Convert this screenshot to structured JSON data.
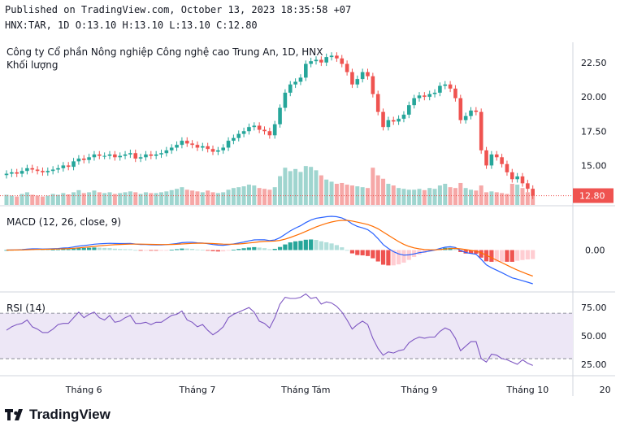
{
  "header": {
    "published": "Published on TradingView.com, October 13, 2023 18:35:58 +07",
    "ohlc": "HNX:TAR, 1D O:13.10 H:13.10 L:13.10 C:12.80"
  },
  "footer": {
    "brand": "TradingView"
  },
  "colors": {
    "up": "#26a69a",
    "down": "#ef5350",
    "vol_up": "#9fd5cf",
    "vol_down": "#f6a8a7",
    "macd_line": "#2962ff",
    "signal_line": "#ff6d00",
    "rsi_line": "#7e57c2",
    "rsi_band": "#ede7f6"
  },
  "chart_data": [
    {
      "type": "candlestick",
      "title": "Công ty Cổ phần Nông nghiệp Công nghệ cao Trung An, 1D, HNX",
      "subtitle": "Khối lượng",
      "x_ticks": [
        "Tháng 6",
        "Tháng 7",
        "Tháng Tám",
        "Tháng 9",
        "Tháng 10",
        "20"
      ],
      "y_ticks": [
        "22.50",
        "20.00",
        "17.50",
        "15.00"
      ],
      "ylim": [
        12.3,
        23.5
      ],
      "last_price": "12.80",
      "close": [
        14.4,
        14.5,
        14.4,
        14.6,
        14.8,
        14.7,
        14.6,
        14.5,
        14.6,
        14.7,
        14.8,
        15.0,
        14.9,
        15.3,
        15.5,
        15.4,
        15.6,
        15.8,
        15.7,
        15.7,
        15.8,
        15.6,
        15.7,
        15.8,
        15.9,
        15.5,
        15.6,
        15.8,
        15.7,
        15.8,
        15.9,
        16.1,
        16.3,
        16.5,
        16.8,
        16.6,
        16.5,
        16.3,
        16.4,
        16.2,
        16.0,
        16.1,
        16.3,
        16.8,
        17.0,
        17.3,
        17.5,
        17.8,
        17.9,
        17.6,
        17.5,
        17.2,
        18.0,
        19.2,
        20.3,
        20.9,
        21.1,
        21.4,
        22.4,
        22.6,
        22.7,
        22.5,
        22.9,
        23.0,
        22.8,
        22.4,
        21.8,
        20.9,
        21.3,
        21.8,
        21.5,
        20.2,
        18.9,
        17.8,
        18.3,
        18.2,
        18.4,
        18.7,
        19.4,
        19.9,
        20.1,
        20.0,
        20.2,
        20.3,
        20.8,
        20.9,
        20.6,
        19.9,
        18.3,
        18.6,
        19.0,
        18.9,
        16.1,
        15.0,
        15.8,
        15.6,
        15.1,
        14.5,
        14.0,
        14.2,
        13.7,
        13.3,
        12.8
      ],
      "volume": [
        0.24,
        0.22,
        0.2,
        0.26,
        0.3,
        0.24,
        0.22,
        0.2,
        0.22,
        0.26,
        0.24,
        0.28,
        0.25,
        0.3,
        0.35,
        0.28,
        0.3,
        0.34,
        0.3,
        0.28,
        0.3,
        0.26,
        0.28,
        0.3,
        0.32,
        0.3,
        0.26,
        0.3,
        0.28,
        0.28,
        0.3,
        0.32,
        0.35,
        0.38,
        0.42,
        0.36,
        0.34,
        0.32,
        0.3,
        0.34,
        0.3,
        0.28,
        0.3,
        0.36,
        0.4,
        0.42,
        0.44,
        0.48,
        0.46,
        0.4,
        0.38,
        0.36,
        0.42,
        0.68,
        0.88,
        0.8,
        0.85,
        0.78,
        0.92,
        0.9,
        0.82,
        0.7,
        0.6,
        0.55,
        0.5,
        0.52,
        0.48,
        0.46,
        0.44,
        0.42,
        0.4,
        0.88,
        0.7,
        0.62,
        0.5,
        0.46,
        0.4,
        0.38,
        0.36,
        0.36,
        0.38,
        0.35,
        0.4,
        0.38,
        0.46,
        0.5,
        0.42,
        0.4,
        0.52,
        0.4,
        0.36,
        0.34,
        0.46,
        0.3,
        0.32,
        0.3,
        0.28,
        0.26,
        0.5,
        0.48,
        0.4,
        0.3,
        0.24
      ]
    },
    {
      "type": "macd",
      "title": "MACD (12, 26, close, 9)",
      "y_ticks": [
        "0.00"
      ]
    },
    {
      "type": "line",
      "title": "RSI (14)",
      "y_ticks": [
        "75.00",
        "50.00",
        "25.00"
      ],
      "ylim": [
        15,
        88
      ],
      "bands": [
        30,
        70
      ],
      "series": [
        {
          "values": [
            55,
            58,
            60,
            61,
            64,
            58,
            56,
            53,
            53,
            56,
            60,
            61,
            61,
            66,
            71,
            66,
            69,
            71,
            66,
            64,
            68,
            62,
            63,
            66,
            68,
            61,
            61,
            62,
            60,
            62,
            62,
            65,
            68,
            69,
            72,
            64,
            62,
            58,
            60,
            55,
            51,
            54,
            58,
            66,
            69,
            71,
            73,
            75,
            71,
            63,
            61,
            57,
            66,
            78,
            84,
            83,
            83,
            84,
            87,
            83,
            84,
            78,
            80,
            79,
            76,
            71,
            64,
            56,
            60,
            63,
            60,
            48,
            39,
            33,
            36,
            35,
            37,
            38,
            44,
            47,
            49,
            48,
            49,
            49,
            54,
            57,
            55,
            48,
            37,
            41,
            45,
            45,
            30,
            27,
            34,
            33,
            30,
            29,
            27,
            25,
            29,
            26,
            24
          ]
        }
      ]
    }
  ]
}
